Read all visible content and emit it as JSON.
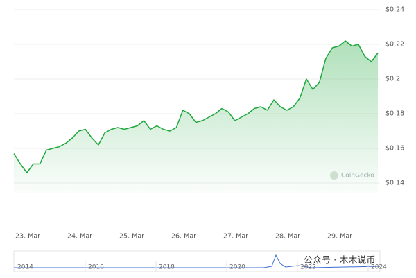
{
  "chart_data": {
    "type": "line",
    "categories": [
      "23. Mar",
      null,
      null,
      null,
      null,
      null,
      null,
      null,
      "24. Mar",
      null,
      null,
      null,
      null,
      null,
      null,
      null,
      "25. Mar",
      null,
      null,
      null,
      null,
      null,
      null,
      null,
      "26. Mar",
      null,
      null,
      null,
      null,
      null,
      null,
      null,
      "27. Mar",
      null,
      null,
      null,
      null,
      null,
      null,
      null,
      "28. Mar",
      null,
      null,
      null,
      null,
      null,
      null,
      null,
      "29. Mar",
      null,
      null,
      null,
      null,
      null,
      null,
      null,
      null
    ],
    "values": [
      0.157,
      0.151,
      0.146,
      0.151,
      0.151,
      0.159,
      0.16,
      0.161,
      0.163,
      0.166,
      0.17,
      0.171,
      0.166,
      0.162,
      0.169,
      0.171,
      0.172,
      0.171,
      0.172,
      0.173,
      0.176,
      0.171,
      0.173,
      0.171,
      0.17,
      0.172,
      0.182,
      0.18,
      0.175,
      0.176,
      0.178,
      0.18,
      0.183,
      0.181,
      0.176,
      0.178,
      0.18,
      0.183,
      0.184,
      0.182,
      0.188,
      0.184,
      0.182,
      0.184,
      0.189,
      0.2,
      0.194,
      0.198,
      0.212,
      0.218,
      0.219,
      0.222,
      0.219,
      0.22,
      0.213,
      0.21,
      0.215
    ],
    "color": "#1ea73c",
    "ylim": [
      0.14,
      0.24
    ],
    "yticks": [
      {
        "value": 0.14,
        "label": "$0.14"
      },
      {
        "value": 0.16,
        "label": "$0.16"
      },
      {
        "value": 0.18,
        "label": "$0.18"
      },
      {
        "value": 0.2,
        "label": "$0.2"
      },
      {
        "value": 0.22,
        "label": "$0.22"
      },
      {
        "value": 0.24,
        "label": "$0.24"
      }
    ],
    "grid": true,
    "watermark": "CoinGecko"
  },
  "navigator": {
    "years": [
      "2014",
      "2016",
      "2018",
      "2020",
      "2022",
      "2024"
    ]
  },
  "overlay": "公众号 · 木木说币"
}
